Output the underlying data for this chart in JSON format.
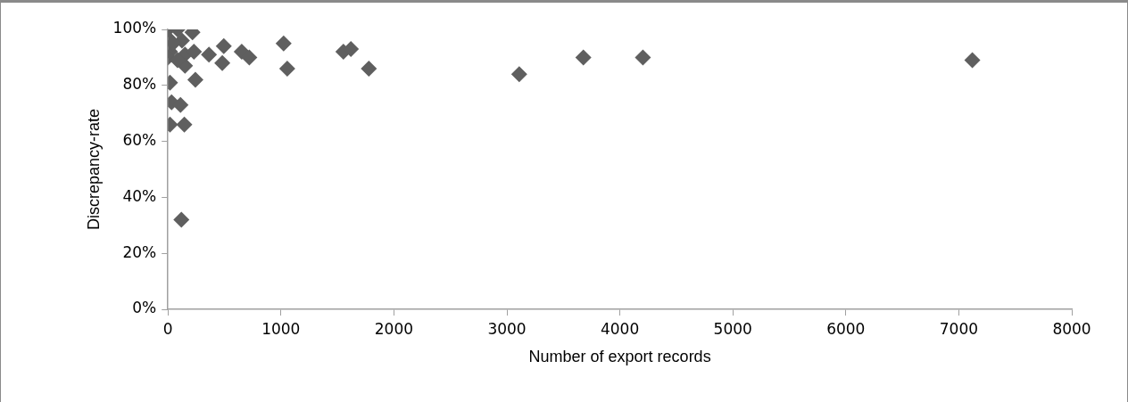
{
  "chart_data": {
    "type": "scatter",
    "xlabel": "Number of export records",
    "ylabel": "Discrepancy-rate",
    "xlim": [
      0,
      8000
    ],
    "xticks": [
      0,
      1000,
      2000,
      3000,
      4000,
      5000,
      6000,
      7000,
      8000
    ],
    "ylim": [
      0,
      100
    ],
    "yticks": [
      {
        "value": 0,
        "label": "0%"
      },
      {
        "value": 20,
        "label": "20%"
      },
      {
        "value": 40,
        "label": "40%"
      },
      {
        "value": 60,
        "label": "60%"
      },
      {
        "value": 80,
        "label": "80%"
      },
      {
        "value": 100,
        "label": "100%"
      }
    ],
    "grid": false,
    "legend": false,
    "marker": "diamond",
    "series": [
      {
        "color": "#5f5f5f",
        "x": [
          0,
          85,
          217,
          0,
          124,
          18,
          151,
          230,
          363,
          494,
          481,
          653,
          720,
          151,
          0,
          85,
          45,
          1024,
          1056,
          1553,
          1619,
          1778,
          243,
          18,
          32,
          111,
          18,
          145,
          119,
          3109,
          3677,
          4204,
          7120
        ],
        "values": [
          100,
          100,
          99,
          97,
          96,
          92,
          91,
          92,
          91,
          94,
          88,
          92,
          90,
          87,
          90,
          89,
          95,
          95,
          86,
          92,
          93,
          86,
          82,
          81,
          74,
          73,
          66,
          66,
          32,
          84,
          90,
          90,
          89
        ]
      }
    ]
  }
}
